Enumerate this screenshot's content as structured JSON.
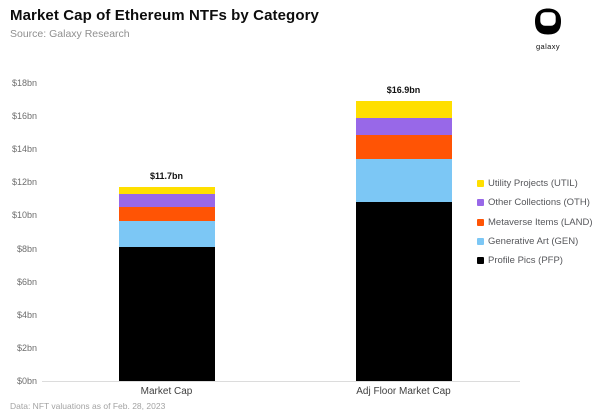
{
  "header": {
    "title": "Market Cap of Ethereum NTFs by Category",
    "subtitle": "Source: Galaxy Research",
    "logo_text": "galaxy"
  },
  "footer": {
    "note": "Data: NFT valuations as of Feb. 28, 2023"
  },
  "chart_data": {
    "type": "bar",
    "stacked": true,
    "title": "Market Cap of Ethereum NTFs by Category",
    "categories": [
      "Market Cap",
      "Adj Floor Market Cap"
    ],
    "series": [
      {
        "name": "Profile Pics (PFP)",
        "color": "#000000",
        "values": [
          8.1,
          10.8
        ]
      },
      {
        "name": "Generative Art (GEN)",
        "color": "#7cc7f5",
        "values": [
          1.55,
          2.6
        ]
      },
      {
        "name": "Metaverse Items (LAND)",
        "color": "#ff5405",
        "values": [
          0.85,
          1.45
        ]
      },
      {
        "name": "Other Collections (OTH)",
        "color": "#9868e8",
        "values": [
          0.8,
          1.05
        ]
      },
      {
        "name": "Utility Projects (UTIL)",
        "color": "#ffdf00",
        "values": [
          0.4,
          1.0
        ]
      }
    ],
    "totals": [
      11.7,
      16.9
    ],
    "totals_labels": [
      "$11.7bn",
      "$16.9bn"
    ],
    "y_ticks": [
      "$18bn",
      "$16bn",
      "$14bn",
      "$12bn",
      "$10bn",
      "$8bn",
      "$6bn",
      "$4bn",
      "$2bn",
      "$0bn"
    ],
    "ylim": [
      0,
      18
    ],
    "xlabel": "",
    "ylabel": "",
    "grid": false,
    "legend_position": "right",
    "legend_order_top_to_bottom": [
      "Utility Projects (UTIL)",
      "Other Collections (OTH)",
      "Metaverse Items (LAND)",
      "Generative Art (GEN)",
      "Profile Pics (PFP)"
    ]
  }
}
